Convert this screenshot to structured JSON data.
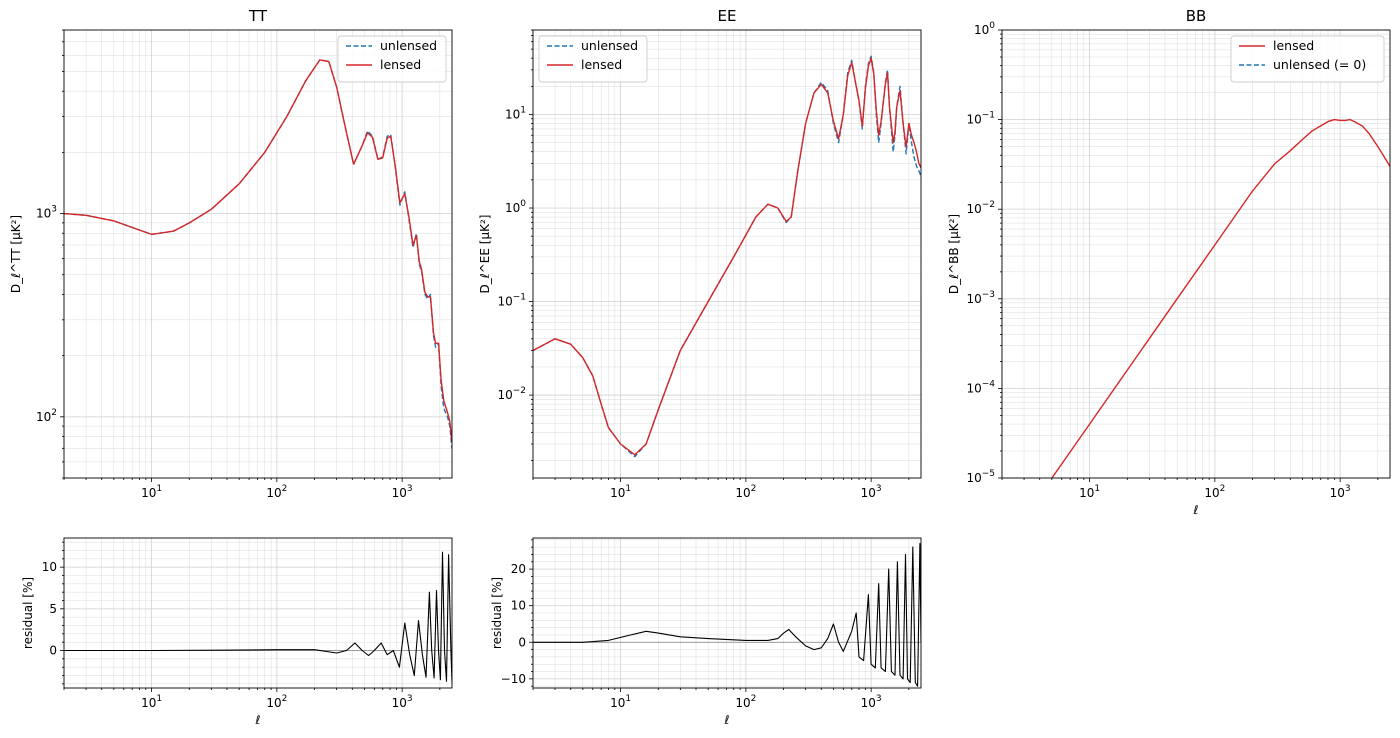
{
  "chart_data": [
    {
      "id": "tt",
      "type": "line",
      "title": "TT",
      "xlabel": "",
      "ylabel": "D_ℓ^TT [μK²]",
      "xscale": "log",
      "yscale": "log",
      "xlim": [
        2,
        2500
      ],
      "ylim": [
        50,
        8000
      ],
      "xtick_labels": [
        "10",
        "100",
        "1000"
      ],
      "ytick_labels": [
        "100",
        "1000"
      ],
      "grid": true,
      "legend_position": "top-right",
      "legend_entries": [
        "unlensed",
        "lensed"
      ],
      "series": [
        {
          "name": "unlensed",
          "style": "dashed",
          "color": "#1f77b4",
          "x": [
            2,
            3,
            5,
            10,
            15,
            20,
            30,
            50,
            80,
            120,
            170,
            220,
            260,
            300,
            350,
            410,
            470,
            530,
            580,
            640,
            700,
            760,
            810,
            880,
            960,
            1050,
            1130,
            1220,
            1300,
            1370,
            1430,
            1520,
            1600,
            1680,
            1780,
            1850,
            1950,
            2050,
            2150,
            2300,
            2400,
            2500
          ],
          "y": [
            1000,
            980,
            920,
            790,
            820,
            900,
            1050,
            1400,
            2000,
            3000,
            4500,
            5700,
            5600,
            4200,
            2700,
            1750,
            2100,
            2550,
            2400,
            1850,
            1900,
            2400,
            2450,
            1700,
            1100,
            1280,
            950,
            680,
            800,
            560,
            520,
            400,
            380,
            400,
            250,
            220,
            230,
            140,
            110,
            100,
            90,
            70
          ]
        },
        {
          "name": "lensed",
          "style": "solid",
          "color": "#d62728",
          "x": [
            2,
            3,
            5,
            10,
            15,
            20,
            30,
            50,
            80,
            120,
            170,
            220,
            260,
            300,
            350,
            410,
            470,
            530,
            580,
            640,
            700,
            760,
            810,
            880,
            960,
            1050,
            1130,
            1220,
            1300,
            1370,
            1430,
            1520,
            1600,
            1680,
            1780,
            1850,
            1950,
            2050,
            2150,
            2300,
            2400,
            2500
          ],
          "y": [
            1000,
            980,
            920,
            790,
            820,
            900,
            1050,
            1400,
            2000,
            3000,
            4500,
            5700,
            5600,
            4200,
            2700,
            1750,
            2100,
            2500,
            2370,
            1850,
            1880,
            2350,
            2400,
            1720,
            1130,
            1250,
            970,
            700,
            780,
            580,
            530,
            410,
            390,
            390,
            260,
            230,
            230,
            150,
            120,
            105,
            95,
            75
          ]
        }
      ]
    },
    {
      "id": "ee",
      "type": "line",
      "title": "EE",
      "xlabel": "",
      "ylabel": "D_ℓ^EE [μK²]",
      "xscale": "log",
      "yscale": "log",
      "xlim": [
        2,
        2500
      ],
      "ylim": [
        0.0013,
        80
      ],
      "xtick_labels": [
        "10",
        "100",
        "1000"
      ],
      "ytick_labels": [
        "0.01",
        "0.1",
        "1",
        "10"
      ],
      "grid": true,
      "legend_position": "top-left",
      "legend_entries": [
        "unlensed",
        "lensed"
      ],
      "series": [
        {
          "name": "unlensed",
          "style": "dashed",
          "color": "#1f77b4",
          "x": [
            2,
            3,
            4,
            5,
            6,
            7,
            8,
            10,
            13,
            16,
            20,
            30,
            50,
            80,
            120,
            150,
            180,
            210,
            230,
            260,
            300,
            350,
            400,
            450,
            500,
            550,
            600,
            650,
            700,
            760,
            800,
            850,
            900,
            950,
            1000,
            1050,
            1100,
            1150,
            1200,
            1300,
            1350,
            1400,
            1500,
            1550,
            1600,
            1700,
            1800,
            1900,
            2000,
            2100,
            2200,
            2300,
            2400,
            2500
          ],
          "y": [
            0.03,
            0.04,
            0.035,
            0.025,
            0.016,
            0.008,
            0.0045,
            0.003,
            0.0022,
            0.003,
            0.007,
            0.03,
            0.1,
            0.3,
            0.8,
            1.1,
            1.0,
            0.7,
            0.8,
            2.5,
            8,
            17,
            22,
            18,
            8,
            5,
            10,
            28,
            38,
            20,
            14,
            7,
            20,
            35,
            42,
            28,
            10,
            5,
            8,
            22,
            30,
            12,
            4,
            6,
            12,
            20,
            8,
            3.8,
            8,
            5,
            3.5,
            2.8,
            2.5,
            2.2
          ]
        },
        {
          "name": "lensed",
          "style": "solid",
          "color": "#d62728",
          "x": [
            2,
            3,
            4,
            5,
            6,
            7,
            8,
            10,
            13,
            16,
            20,
            30,
            50,
            80,
            120,
            150,
            180,
            210,
            230,
            260,
            300,
            350,
            400,
            450,
            500,
            550,
            600,
            650,
            700,
            760,
            800,
            850,
            900,
            950,
            1000,
            1050,
            1100,
            1150,
            1200,
            1300,
            1350,
            1400,
            1500,
            1550,
            1600,
            1700,
            1800,
            1900,
            2000,
            2100,
            2200,
            2300,
            2400,
            2500
          ],
          "y": [
            0.03,
            0.04,
            0.035,
            0.025,
            0.016,
            0.008,
            0.0045,
            0.003,
            0.0023,
            0.003,
            0.007,
            0.03,
            0.1,
            0.3,
            0.8,
            1.1,
            1.0,
            0.72,
            0.8,
            2.5,
            8,
            17,
            21,
            17,
            8.5,
            5.5,
            10,
            26,
            36,
            20,
            14,
            7.5,
            19,
            33,
            40,
            27,
            11,
            6,
            8.5,
            21,
            28,
            12,
            5,
            6.5,
            12,
            18,
            8,
            4.5,
            8,
            6,
            5,
            4,
            3,
            2.7
          ]
        }
      ]
    },
    {
      "id": "bb",
      "type": "line",
      "title": "BB",
      "xlabel": "ℓ",
      "ylabel": "D_ℓ^BB [μK²]",
      "xscale": "log",
      "yscale": "log",
      "xlim": [
        2,
        2500
      ],
      "ylim": [
        1e-05,
        1
      ],
      "xtick_labels": [
        "10",
        "100",
        "1000"
      ],
      "ytick_labels": [
        "10⁻⁵",
        "10⁻⁴",
        "10⁻³",
        "10⁻²",
        "10⁻¹",
        "10⁰"
      ],
      "grid": true,
      "legend_position": "top-right",
      "legend_entries": [
        "lensed",
        "unlensed (= 0)"
      ],
      "series": [
        {
          "name": "lensed",
          "style": "solid",
          "color": "#d62728",
          "x": [
            5,
            10,
            20,
            50,
            100,
            200,
            300,
            400,
            500,
            600,
            700,
            800,
            900,
            1000,
            1100,
            1200,
            1300,
            1500,
            1700,
            2000,
            2500
          ],
          "y": [
            1e-05,
            4e-05,
            0.00016,
            0.001,
            0.004,
            0.016,
            0.032,
            0.045,
            0.06,
            0.075,
            0.085,
            0.095,
            0.1,
            0.098,
            0.098,
            0.1,
            0.095,
            0.085,
            0.07,
            0.05,
            0.03
          ]
        },
        {
          "name": "unlensed (= 0)",
          "style": "dashed",
          "color": "#1f77b4",
          "x": [],
          "y": []
        }
      ]
    },
    {
      "id": "tt_res",
      "type": "line",
      "title": "",
      "xlabel": "ℓ",
      "ylabel": "residual [%]",
      "xscale": "log",
      "yscale": "linear",
      "xlim": [
        2,
        2500
      ],
      "ylim": [
        -4.5,
        13.5
      ],
      "xtick_labels": [
        "10",
        "100",
        "1000"
      ],
      "ytick_labels": [
        "0",
        "5",
        "10"
      ],
      "grid": true,
      "series": [
        {
          "name": "",
          "style": "solid",
          "color": "#000000",
          "x": [
            2,
            10,
            50,
            100,
            200,
            300,
            360,
            420,
            480,
            540,
            600,
            680,
            760,
            850,
            950,
            1050,
            1150,
            1250,
            1350,
            1450,
            1550,
            1650,
            1720,
            1800,
            1880,
            1950,
            2020,
            2100,
            2180,
            2260,
            2350,
            2450,
            2500
          ],
          "y": [
            0,
            0,
            0.05,
            0.1,
            0.1,
            -0.3,
            0,
            0.9,
            0,
            -0.6,
            0,
            0.9,
            -0.5,
            0,
            -2,
            3.3,
            -0.5,
            -3,
            3.6,
            -0.5,
            -3.2,
            7,
            0,
            -3.3,
            7.2,
            0,
            -3.5,
            11.8,
            0,
            -3.7,
            11.5,
            0,
            -3.8
          ]
        }
      ]
    },
    {
      "id": "ee_res",
      "type": "line",
      "title": "",
      "xlabel": "ℓ",
      "ylabel": "residual [%]",
      "xscale": "log",
      "yscale": "linear",
      "xlim": [
        2,
        2500
      ],
      "ylim": [
        -12.5,
        28.5
      ],
      "xtick_labels": [
        "10",
        "100",
        "1000"
      ],
      "ytick_labels": [
        "-10",
        "0",
        "10",
        "20"
      ],
      "grid": true,
      "series": [
        {
          "name": "",
          "style": "solid",
          "color": "#000000",
          "x": [
            2,
            5,
            8,
            12,
            16,
            20,
            30,
            50,
            100,
            150,
            180,
            200,
            220,
            250,
            300,
            350,
            400,
            450,
            500,
            550,
            600,
            700,
            760,
            800,
            870,
            950,
            1000,
            1080,
            1150,
            1200,
            1300,
            1380,
            1450,
            1550,
            1620,
            1700,
            1800,
            1880,
            1950,
            2050,
            2150,
            2250,
            2350,
            2450,
            2500
          ],
          "y": [
            0,
            0,
            0.5,
            2,
            3,
            2.5,
            1.5,
            1,
            0.5,
            0.5,
            1,
            2.5,
            3.5,
            1.5,
            -1,
            -2,
            -1.5,
            1,
            5,
            0,
            -2.5,
            3,
            8,
            -4,
            -5,
            13,
            -6,
            -7,
            16,
            -7,
            -8,
            20,
            -8,
            -9,
            22,
            -9,
            -10,
            24,
            -10,
            -11,
            26,
            -11,
            -12,
            27,
            0
          ]
        }
      ]
    }
  ]
}
